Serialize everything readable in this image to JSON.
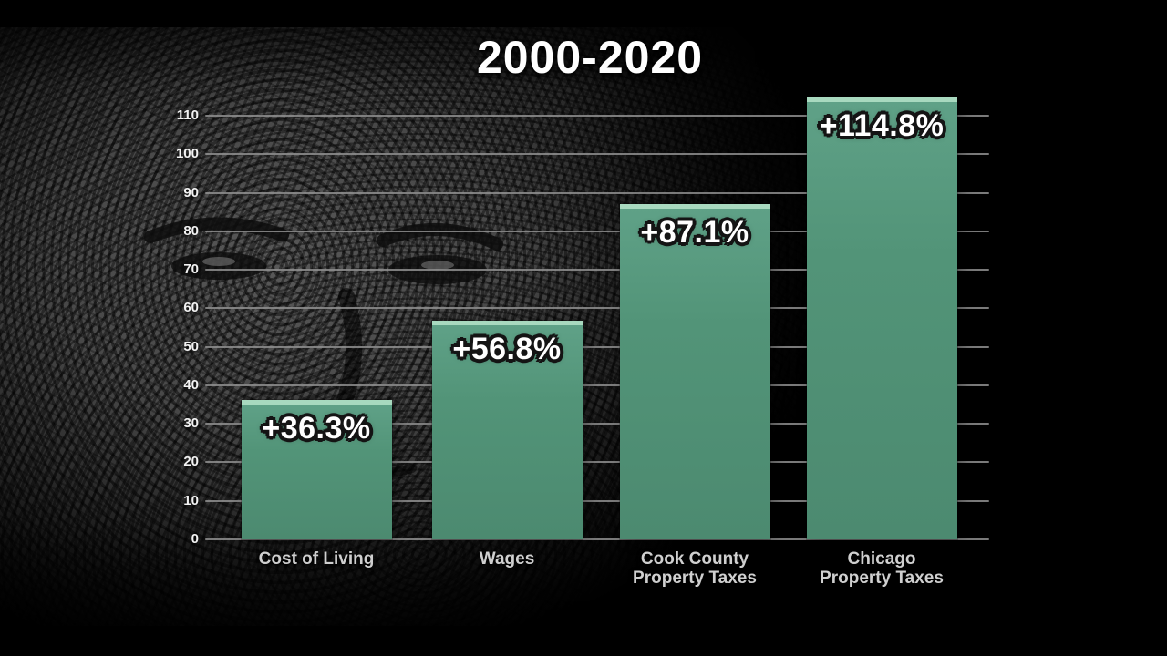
{
  "page": {
    "title": "2000-2020"
  },
  "chart_data": {
    "type": "bar",
    "title": "2000-2020",
    "categories": [
      "Cost of Living",
      "Wages",
      "Cook County Property Taxes",
      "Chicago Property Taxes"
    ],
    "category_lines": [
      [
        "Cost of Living"
      ],
      [
        "Wages"
      ],
      [
        "Cook County",
        "Property Taxes"
      ],
      [
        "Chicago",
        "Property Taxes"
      ]
    ],
    "values": [
      36.3,
      56.8,
      87.1,
      114.8
    ],
    "value_labels": [
      "+36.3%",
      "+56.8%",
      "+87.1%",
      "+114.8%"
    ],
    "xlabel": "",
    "ylabel": "",
    "ylim": [
      0,
      115
    ],
    "yticks": [
      0,
      10,
      20,
      30,
      40,
      50,
      60,
      70,
      80,
      90,
      100,
      110
    ],
    "grid": true,
    "legend": false,
    "colors": {
      "bar": "#529478",
      "bar_top_highlight": "#a8d9bf",
      "gridline": "#8f8f8f",
      "tick_label": "#f2f2f2",
      "category_label": "#cfcfcf",
      "value_label": "#ffffff",
      "title": "#ffffff",
      "background": "#000000"
    }
  }
}
